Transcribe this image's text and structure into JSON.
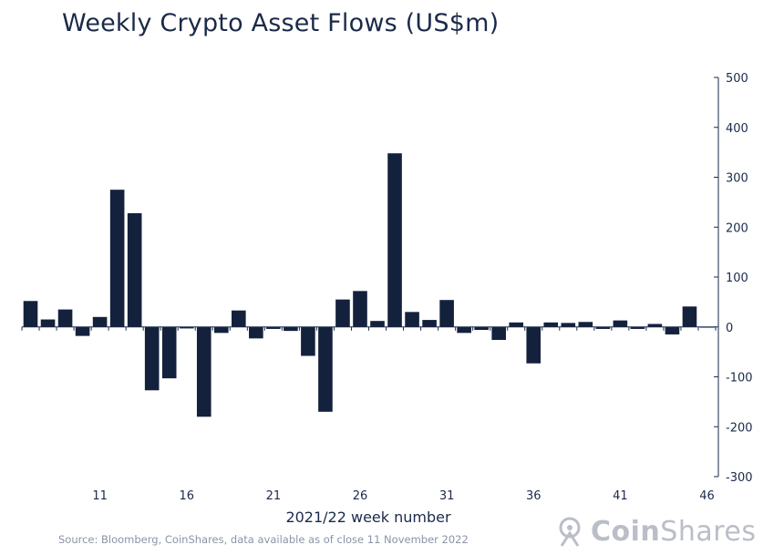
{
  "chart_data": {
    "type": "bar",
    "title": "Weekly Crypto Asset Flows (US$m)",
    "xlabel": "2021/22 week number",
    "ylabel": "",
    "ylim": [
      -300,
      500
    ],
    "yticks": [
      500,
      400,
      300,
      200,
      100,
      0,
      -100,
      -200,
      -300
    ],
    "xtick_labels": [
      "11",
      "16",
      "21",
      "26",
      "31",
      "36",
      "41",
      "46"
    ],
    "x": [
      7,
      8,
      9,
      10,
      11,
      12,
      13,
      14,
      15,
      16,
      17,
      18,
      19,
      20,
      21,
      22,
      23,
      24,
      25,
      26,
      27,
      28,
      29,
      30,
      31,
      32,
      33,
      34,
      35,
      36,
      37,
      38,
      39,
      40,
      41,
      42,
      43,
      44,
      45,
      46
    ],
    "values": [
      52,
      15,
      35,
      -18,
      20,
      275,
      228,
      -127,
      -103,
      -3,
      -180,
      -12,
      33,
      -23,
      -4,
      -8,
      -58,
      -170,
      55,
      72,
      12,
      348,
      30,
      14,
      54,
      -12,
      -6,
      -26,
      9,
      -73,
      9,
      8,
      10,
      -4,
      13,
      -4,
      6,
      -15,
      41,
      0
    ],
    "bar_color": "#14213d",
    "grid": false
  },
  "source": "Source: Bloomberg, CoinShares, data available as of close 11 November 2022",
  "logo": {
    "text_bold": "Coin",
    "text_rest": "Shares",
    "icon": "coinshares-logo-icon"
  }
}
